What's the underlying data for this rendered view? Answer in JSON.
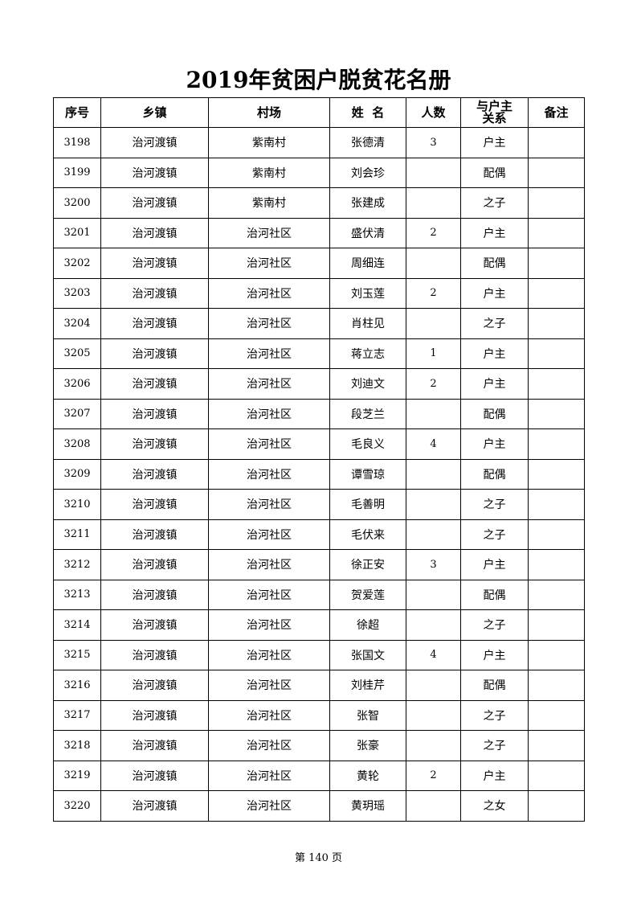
{
  "title": "2019年贫困户脱贫花名册",
  "columns": [
    "序号",
    "乡镇",
    "村场",
    "姓  名",
    "人数",
    "与户主关系",
    "备注"
  ],
  "rows": [
    [
      "3198",
      "治河渡镇",
      "紫南村",
      "张德清",
      "3",
      "户主",
      ""
    ],
    [
      "3199",
      "治河渡镇",
      "紫南村",
      "刘会珍",
      "",
      "配偶",
      ""
    ],
    [
      "3200",
      "治河渡镇",
      "紫南村",
      "张建成",
      "",
      "之子",
      ""
    ],
    [
      "3201",
      "治河渡镇",
      "治河社区",
      "盛伏清",
      "2",
      "户主",
      ""
    ],
    [
      "3202",
      "治河渡镇",
      "治河社区",
      "周细连",
      "",
      "配偶",
      ""
    ],
    [
      "3203",
      "治河渡镇",
      "治河社区",
      "刘玉莲",
      "2",
      "户主",
      ""
    ],
    [
      "3204",
      "治河渡镇",
      "治河社区",
      "肖柱见",
      "",
      "之子",
      ""
    ],
    [
      "3205",
      "治河渡镇",
      "治河社区",
      "蒋立志",
      "1",
      "户主",
      ""
    ],
    [
      "3206",
      "治河渡镇",
      "治河社区",
      "刘迪文",
      "2",
      "户主",
      ""
    ],
    [
      "3207",
      "治河渡镇",
      "治河社区",
      "段芝兰",
      "",
      "配偶",
      ""
    ],
    [
      "3208",
      "治河渡镇",
      "治河社区",
      "毛良义",
      "4",
      "户主",
      ""
    ],
    [
      "3209",
      "治河渡镇",
      "治河社区",
      "谭雪琼",
      "",
      "配偶",
      ""
    ],
    [
      "3210",
      "治河渡镇",
      "治河社区",
      "毛善明",
      "",
      "之子",
      ""
    ],
    [
      "3211",
      "治河渡镇",
      "治河社区",
      "毛伏来",
      "",
      "之子",
      ""
    ],
    [
      "3212",
      "治河渡镇",
      "治河社区",
      "徐正安",
      "3",
      "户主",
      ""
    ],
    [
      "3213",
      "治河渡镇",
      "治河社区",
      "贺爱莲",
      "",
      "配偶",
      ""
    ],
    [
      "3214",
      "治河渡镇",
      "治河社区",
      "徐超",
      "",
      "之子",
      ""
    ],
    [
      "3215",
      "治河渡镇",
      "治河社区",
      "张国文",
      "4",
      "户主",
      ""
    ],
    [
      "3216",
      "治河渡镇",
      "治河社区",
      "刘桂芹",
      "",
      "配偶",
      ""
    ],
    [
      "3217",
      "治河渡镇",
      "治河社区",
      "张智",
      "",
      "之子",
      ""
    ],
    [
      "3218",
      "治河渡镇",
      "治河社区",
      "张豪",
      "",
      "之子",
      ""
    ],
    [
      "3219",
      "治河渡镇",
      "治河社区",
      "黄轮",
      "2",
      "户主",
      ""
    ],
    [
      "3220",
      "治河渡镇",
      "治河社区",
      "黄玥瑶",
      "",
      "之女",
      ""
    ]
  ],
  "footer": "第 140 页"
}
